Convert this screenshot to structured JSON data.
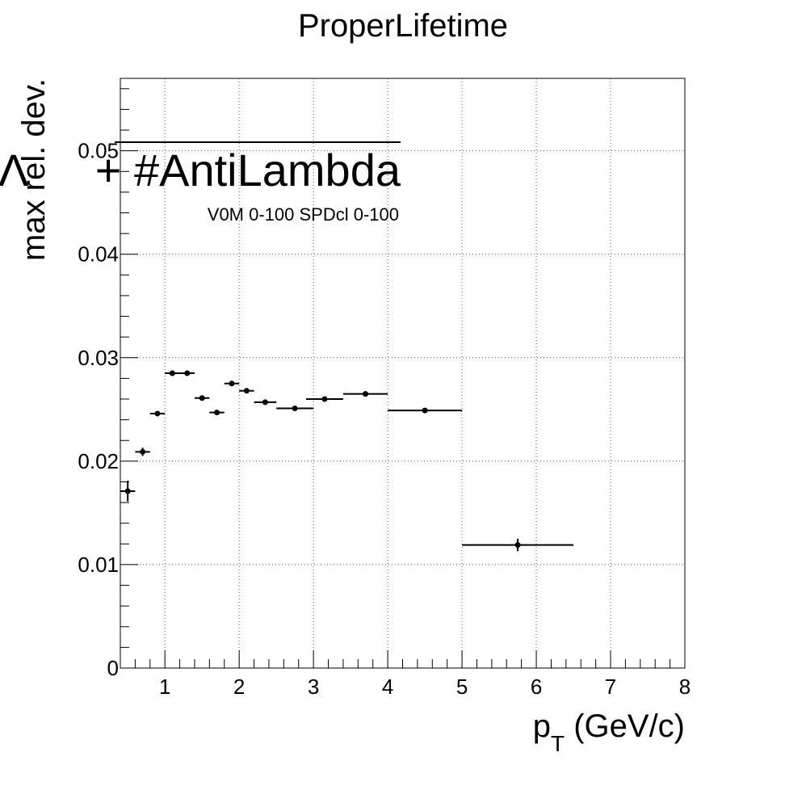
{
  "chart_data": {
    "type": "scatter",
    "title": "ProperLifetime",
    "xlabel": "p",
    "xlabel_sub": "T",
    "xlabel_unit": " (GeV/c)",
    "ylabel": "max rel. dev.",
    "legend_main_symbol": "Λ",
    "legend_main_text": "+ #AntiLambda",
    "legend_sub": "V0M 0-100 SPDcl 0-100",
    "xlim": [
      0.4,
      8.0
    ],
    "ylim": [
      0,
      0.057
    ],
    "x_ticks": [
      1,
      2,
      3,
      4,
      5,
      6,
      7,
      8
    ],
    "x_tick_labels": [
      "1",
      "2",
      "3",
      "4",
      "5",
      "6",
      "7",
      "8"
    ],
    "y_ticks": [
      0,
      0.01,
      0.02,
      0.03,
      0.04,
      0.05
    ],
    "y_tick_labels": [
      "0",
      "0.01",
      "0.02",
      "0.03",
      "0.04",
      "0.05"
    ],
    "grid": true,
    "points": [
      {
        "x": 0.5,
        "xlo": 0.4,
        "xhi": 0.6,
        "y": 0.0171,
        "yerr": 0.001
      },
      {
        "x": 0.7,
        "xlo": 0.6,
        "xhi": 0.8,
        "y": 0.0209,
        "yerr": 0.0004
      },
      {
        "x": 0.9,
        "xlo": 0.8,
        "xhi": 1.0,
        "y": 0.0246,
        "yerr": 0.0002
      },
      {
        "x": 1.1,
        "xlo": 1.0,
        "xhi": 1.2,
        "y": 0.0285,
        "yerr": 0.0002
      },
      {
        "x": 1.3,
        "xlo": 1.2,
        "xhi": 1.4,
        "y": 0.0285,
        "yerr": 0.0002
      },
      {
        "x": 1.5,
        "xlo": 1.4,
        "xhi": 1.6,
        "y": 0.0261,
        "yerr": 0.0002
      },
      {
        "x": 1.7,
        "xlo": 1.6,
        "xhi": 1.8,
        "y": 0.0247,
        "yerr": 0.0002
      },
      {
        "x": 1.9,
        "xlo": 1.8,
        "xhi": 2.0,
        "y": 0.0275,
        "yerr": 0.0002
      },
      {
        "x": 2.1,
        "xlo": 2.0,
        "xhi": 2.2,
        "y": 0.0268,
        "yerr": 0.0002
      },
      {
        "x": 2.35,
        "xlo": 2.2,
        "xhi": 2.5,
        "y": 0.0257,
        "yerr": 0.0002
      },
      {
        "x": 2.75,
        "xlo": 2.5,
        "xhi": 3.0,
        "y": 0.0251,
        "yerr": 0.0002
      },
      {
        "x": 3.15,
        "xlo": 2.9,
        "xhi": 3.4,
        "y": 0.026,
        "yerr": 0.0002
      },
      {
        "x": 3.7,
        "xlo": 3.4,
        "xhi": 4.0,
        "y": 0.0265,
        "yerr": 0.0002
      },
      {
        "x": 4.5,
        "xlo": 4.0,
        "xhi": 5.0,
        "y": 0.0249,
        "yerr": 0.0002
      },
      {
        "x": 5.75,
        "xlo": 5.0,
        "xhi": 6.5,
        "y": 0.0119,
        "yerr": 0.0006
      }
    ]
  }
}
